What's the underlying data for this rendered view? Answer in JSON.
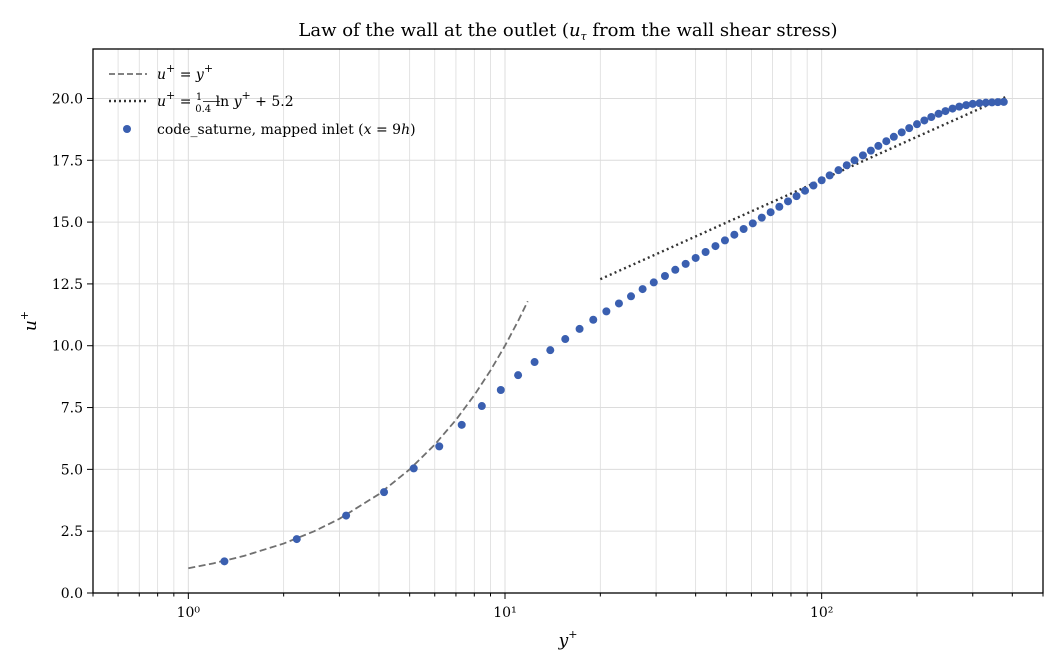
{
  "chart_data": {
    "type": "scatter",
    "title": "Law of the wall at the outlet (uτ from the wall shear stress)",
    "xlabel": "y+",
    "ylabel": "u+",
    "xscale": "log",
    "xlim": [
      0.5,
      500
    ],
    "ylim": [
      0,
      22
    ],
    "grid": "on",
    "legend_position": "top-left",
    "x_ticks": [
      {
        "value": 1,
        "label": "10⁰"
      },
      {
        "value": 10,
        "label": "10¹"
      },
      {
        "value": 100,
        "label": "10²"
      }
    ],
    "y_ticks": [
      0,
      2.5,
      5,
      7.5,
      10,
      12.5,
      15,
      17.5,
      20
    ],
    "y_tick_labels": [
      "0.0",
      "2.5",
      "5.0",
      "7.5",
      "10.0",
      "12.5",
      "15.0",
      "17.5",
      "20.0"
    ],
    "series": [
      {
        "name": "u+ = y+",
        "kind": "line",
        "style": "dashed",
        "color": "#707070",
        "x": [
          1,
          1.2,
          1.5,
          2,
          2.5,
          3,
          4,
          5,
          6,
          7,
          8,
          9,
          10,
          11,
          11.8
        ],
        "y": [
          1,
          1.2,
          1.5,
          2,
          2.5,
          3,
          4,
          5,
          6,
          7,
          8,
          9,
          10,
          11,
          11.8
        ]
      },
      {
        "name": "u+ = (1/0.4) ln y+ + 5.2",
        "kind": "line",
        "style": "dotted",
        "color": "#333333",
        "x": [
          20,
          30,
          50,
          80,
          120,
          200,
          300,
          380
        ],
        "y": [
          12.69,
          13.7,
          14.98,
          16.15,
          17.17,
          18.45,
          19.46,
          20.05
        ]
      },
      {
        "name": "code_saturne, mapped inlet (x = 9h)",
        "kind": "scatter",
        "color": "#3a5fb0",
        "x": [
          1.3,
          2.2,
          3.15,
          4.15,
          5.15,
          6.2,
          7.3,
          8.45,
          9.7,
          11.0,
          12.4,
          13.9,
          15.5,
          17.2,
          19.0,
          20.9,
          22.9,
          25.0,
          27.2,
          29.5,
          32.0,
          34.5,
          37.2,
          40.0,
          43.0,
          46.2,
          49.5,
          53.0,
          56.7,
          60.6,
          64.7,
          69.0,
          73.5,
          78.3,
          83.3,
          88.6,
          94.2,
          100,
          106,
          113,
          120,
          127,
          135,
          143,
          151,
          160,
          169,
          179,
          189,
          200,
          211,
          222,
          234,
          246,
          259,
          272,
          286,
          300,
          315,
          330,
          345,
          360,
          376
        ],
        "y": [
          1.28,
          2.18,
          3.13,
          4.08,
          5.04,
          5.93,
          6.8,
          7.56,
          8.21,
          8.81,
          9.34,
          9.82,
          10.27,
          10.68,
          11.05,
          11.39,
          11.71,
          12.0,
          12.29,
          12.56,
          12.82,
          13.07,
          13.31,
          13.55,
          13.79,
          14.03,
          14.26,
          14.49,
          14.72,
          14.95,
          15.18,
          15.4,
          15.62,
          15.84,
          16.05,
          16.27,
          16.48,
          16.69,
          16.89,
          17.1,
          17.3,
          17.5,
          17.7,
          17.89,
          18.08,
          18.27,
          18.45,
          18.63,
          18.8,
          18.96,
          19.11,
          19.25,
          19.38,
          19.49,
          19.59,
          19.67,
          19.73,
          19.78,
          19.81,
          19.83,
          19.84,
          19.85,
          19.86
        ]
      }
    ]
  }
}
